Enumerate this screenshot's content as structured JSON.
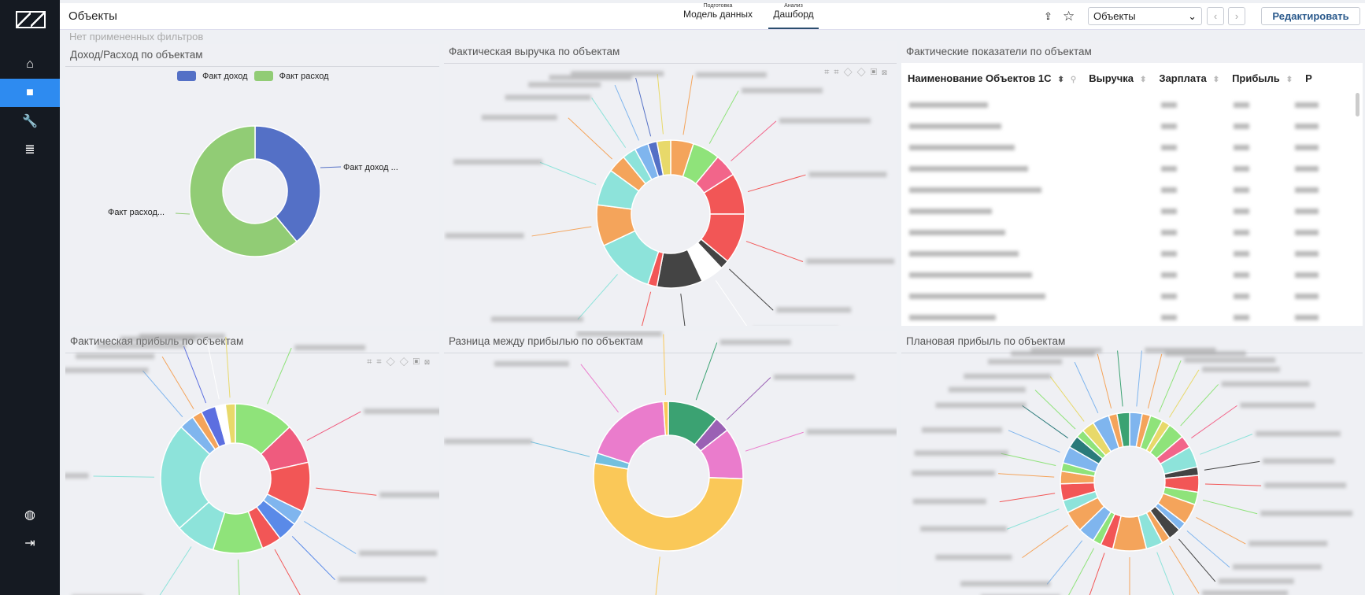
{
  "header": {
    "title": "Объекты",
    "tabs": [
      {
        "small": "Подготовка",
        "label": "Модель данных"
      },
      {
        "small": "Анализ",
        "label": "Дашборд"
      }
    ],
    "select": "Объекты",
    "edit": "Редактировать"
  },
  "filters": "Нет примененных фильтров",
  "panels": {
    "p1": "Доход/Расход по объектам",
    "p2": "Фактическая выручка по объектам",
    "p3": "Фактические показатели по объектам",
    "p4": "Фактическая прибыль по объектам",
    "p5": "Разница между прибылью по объектам",
    "p6": "Плановая прибыль по объектам"
  },
  "table": {
    "columns": [
      "Наименование Объектов 1С",
      "Выручка",
      "Зарплата",
      "Прибыль",
      "Р"
    ]
  },
  "chart_data": [
    {
      "type": "pie",
      "title": "Доход/Расход по объектам",
      "legend": "top",
      "categories": [
        "Факт доход",
        "Факт расход"
      ],
      "labels": [
        "Факт доход ...",
        "Факт расход..."
      ],
      "values": [
        39,
        61
      ],
      "colors": [
        "#5470c6",
        "#91cc75"
      ]
    }
  ],
  "donuts": {
    "d2": {
      "values": [
        5,
        6,
        5,
        9,
        11,
        2,
        5,
        10,
        2,
        13,
        9,
        8,
        4,
        3,
        3,
        2,
        3
      ],
      "colors": [
        "#f4a45b",
        "#8fe37a",
        "#f2658a",
        "#f25656",
        "#f25656",
        "#444",
        "#fff",
        "#444",
        "#f25656",
        "#8de3da",
        "#f4a45b",
        "#8de3da",
        "#f4a45b",
        "#8de3da",
        "#7fb5ee",
        "#5470c6",
        "#e8d96a"
      ]
    },
    "d4": {
      "values": [
        12,
        8,
        10,
        3,
        4,
        4,
        10,
        8,
        22,
        3,
        2,
        3,
        2,
        2
      ],
      "colors": [
        "#8fe37a",
        "#ef5b7e",
        "#f25656",
        "#7fb5ee",
        "#5a8ae8",
        "#f25656",
        "#8fe37a",
        "#8de3da",
        "#8de3da",
        "#7fb5ee",
        "#f4a45b",
        "#5c6fe0",
        "#fff",
        "#e8d96a"
      ]
    },
    "d5": {
      "values": [
        10,
        3,
        10,
        47,
        2,
        17,
        1
      ],
      "colors": [
        "#3ba272",
        "#9a60b4",
        "#ea7ccc",
        "#fac858",
        "#73c0de",
        "#ea7ccc",
        "#fac858"
      ]
    },
    "d6": {
      "values": [
        3,
        2,
        3,
        2,
        4,
        3,
        5,
        2,
        4,
        3,
        5,
        2,
        3,
        2,
        4,
        8,
        3,
        2,
        4,
        5,
        3,
        4,
        3,
        2,
        4,
        3,
        2,
        3,
        4,
        2,
        3
      ],
      "colors": [
        "#7fb5ee",
        "#f4a45b",
        "#8fe37a",
        "#e8d96a",
        "#8fe37a",
        "#f2658a",
        "#8de3da",
        "#444",
        "#f25656",
        "#8fe37a",
        "#f4a45b",
        "#7fb5ee",
        "#444",
        "#f4a45b",
        "#8de3da",
        "#f4a45b",
        "#f25656",
        "#8fe37a",
        "#7fb5ee",
        "#f4a45b",
        "#8de3da",
        "#f25656",
        "#f4a45b",
        "#8fe37a",
        "#7fb5ee",
        "#2a7a7a",
        "#8fe37a",
        "#e8d96a",
        "#7fb5ee",
        "#f4a45b",
        "#3ba272"
      ]
    }
  }
}
